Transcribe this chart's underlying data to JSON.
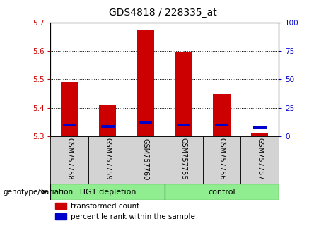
{
  "title": "GDS4818 / 228335_at",
  "samples": [
    "GSM757758",
    "GSM757759",
    "GSM757760",
    "GSM757755",
    "GSM757756",
    "GSM757757"
  ],
  "red_values": [
    5.49,
    5.41,
    5.675,
    5.595,
    5.45,
    5.31
  ],
  "blue_values": [
    5.335,
    5.33,
    5.345,
    5.335,
    5.335,
    5.325
  ],
  "blue_pct": [
    8,
    6,
    10,
    8,
    8,
    4
  ],
  "bar_base": 5.3,
  "ylim_left": [
    5.3,
    5.7
  ],
  "ylim_right": [
    0,
    100
  ],
  "yticks_left": [
    5.3,
    5.4,
    5.5,
    5.6,
    5.7
  ],
  "yticks_right": [
    0,
    25,
    50,
    75,
    100
  ],
  "left_tick_color": "#CC0000",
  "right_tick_color": "#0000CC",
  "bar_color_red": "#CC0000",
  "bar_color_blue": "#0000CC",
  "bg_color_plot": "#FFFFFF",
  "genotype_label": "genotype/variation",
  "legend_red": "transformed count",
  "legend_blue": "percentile rank within the sample",
  "bar_width": 0.45,
  "blue_bar_width": 0.35,
  "group1_label": "TIG1 depletion",
  "group2_label": "control",
  "group_color": "#90EE90"
}
